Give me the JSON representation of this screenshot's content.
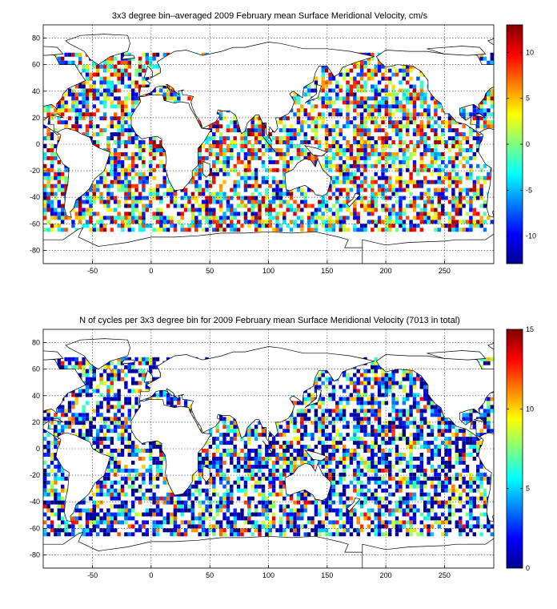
{
  "figure": {
    "panels": [
      {
        "title": "3x3 degree bin–averaged 2009 February mean Surface Meridional Velocity, cm/s",
        "colorbar_ticks": [
          "10",
          "5",
          "0",
          "-5",
          "-10"
        ],
        "colorbar_values": [
          10,
          5,
          0,
          -5,
          -10
        ],
        "clim": [
          -13,
          13
        ]
      },
      {
        "title": "N of cycles per 3x3 degree bin for 2009 February mean Surface Meridional Velocity (7013 in total)",
        "colorbar_ticks": [
          "15",
          "10",
          "5",
          "0"
        ],
        "colorbar_values": [
          15,
          10,
          5,
          0
        ],
        "clim": [
          0,
          15
        ]
      }
    ],
    "xticks": [
      "-50",
      "0",
      "50",
      "100",
      "150",
      "200",
      "250"
    ],
    "xtick_values": [
      -50,
      0,
      50,
      100,
      150,
      200,
      250
    ],
    "yticks": [
      "80",
      "60",
      "40",
      "20",
      "0",
      "-20",
      "-40",
      "-60",
      "-80"
    ],
    "ytick_values": [
      80,
      60,
      40,
      20,
      0,
      -20,
      -40,
      -60,
      -80
    ]
  },
  "chart_data": [
    {
      "type": "heatmap",
      "title": "3x3 degree bin–averaged 2009 February mean Surface Meridional Velocity, cm/s",
      "xlim": [
        -92,
        292
      ],
      "ylim": [
        -90,
        90
      ],
      "bin_size_deg": 3,
      "colormap": "jet",
      "clim": [
        -13,
        13
      ],
      "colorbar_ticks": [
        10,
        5,
        0,
        -5,
        -10
      ],
      "grid": true
    },
    {
      "type": "heatmap",
      "title": "N of cycles per 3x3 degree bin for 2009 February mean Surface Meridional Velocity (7013 in total)",
      "xlim": [
        -92,
        292
      ],
      "ylim": [
        -90,
        90
      ],
      "bin_size_deg": 3,
      "colormap": "jet",
      "clim": [
        0,
        15
      ],
      "colorbar_ticks": [
        15,
        10,
        5,
        0
      ],
      "total_cycles": 7013,
      "grid": true
    }
  ]
}
